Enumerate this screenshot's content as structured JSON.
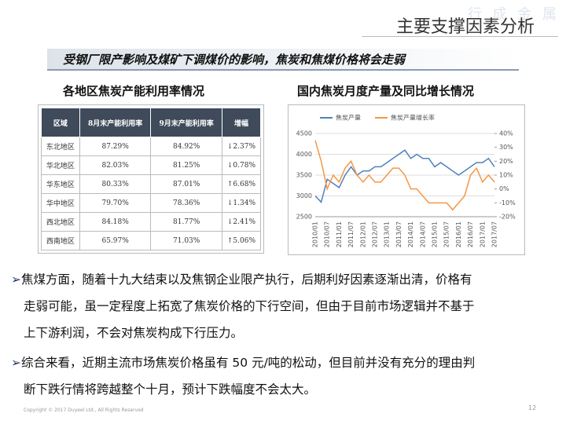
{
  "watermark": "行 成 金 属",
  "title": "主要支撑因素分析",
  "subtitle": "受钢厂限产影响及煤矿下调煤价的影响，焦炭和焦煤价格将会走弱",
  "table": {
    "heading": "各地区焦炭产能利用率情况",
    "header": [
      "区域",
      "8月末产能利用率",
      "9月末产能利用率",
      "增幅"
    ],
    "rows": [
      [
        "东北地区",
        "87.29%",
        "84.92%",
        "↓2.37%"
      ],
      [
        "华北地区",
        "82.03%",
        "81.25%",
        "↓0.78%"
      ],
      [
        "华东地区",
        "80.33%",
        "87.01%",
        "↑6.68%"
      ],
      [
        "华中地区",
        "79.70%",
        "78.36%",
        "↓1.34%"
      ],
      [
        "西北地区",
        "84.18%",
        "81.77%",
        "↓2.41%"
      ],
      [
        "西南地区",
        "65.97%",
        "71.03%",
        "↑5.06%"
      ]
    ]
  },
  "chart_data": {
    "type": "line",
    "title": "国内焦炭月度产量及同比增长情况",
    "categories": [
      "2010/01",
      null,
      "2010/07",
      null,
      "2011/01",
      null,
      "2011/07",
      null,
      "2012/01",
      null,
      "2012/07",
      null,
      "2013/01",
      null,
      "2013/07",
      null,
      "2014/01",
      null,
      "2014/07",
      null,
      "2015/01",
      null,
      "2015/07",
      null,
      "2016/01",
      null,
      "2016/07",
      null,
      "2017/01",
      null,
      "2017/07"
    ],
    "series": [
      {
        "name": "焦炭产量",
        "color": "#4f81bd",
        "values": [
          3000,
          2850,
          3400,
          3300,
          3200,
          3500,
          3700,
          3500,
          3600,
          3600,
          3700,
          3700,
          3800,
          3900,
          4000,
          4100,
          3900,
          4000,
          3900,
          3900,
          3700,
          3800,
          3700,
          3600,
          3500,
          3600,
          3700,
          3800,
          3800,
          3900,
          3700
        ]
      },
      {
        "name": "焦炭产量增长率",
        "color": "#f79646",
        "axis": "y2",
        "values": [
          35,
          20,
          0,
          10,
          5,
          15,
          20,
          10,
          5,
          10,
          5,
          5,
          10,
          15,
          15,
          10,
          0,
          0,
          -5,
          -10,
          -10,
          -10,
          -10,
          -15,
          -10,
          -5,
          10,
          15,
          5,
          10,
          5
        ]
      }
    ],
    "ylim": [
      2500,
      4500
    ],
    "yticks": [
      2500,
      3000,
      3500,
      4000,
      4500
    ],
    "y2lim": [
      -20,
      40
    ],
    "y2ticks": [
      {
        "value": -20,
        "label": "-20%"
      },
      {
        "value": -10,
        "label": "-10%"
      },
      {
        "value": 0,
        "label": "0%"
      },
      {
        "value": 10,
        "label": "10%"
      },
      {
        "value": 20,
        "label": "20%"
      },
      {
        "value": 30,
        "label": "30%"
      },
      {
        "value": 40,
        "label": "40%"
      }
    ],
    "legend": "top-left"
  },
  "bullets": [
    {
      "marker": "➢",
      "lines": [
        "焦煤方面，随着十九大结束以及焦钢企业限产执行，后期利好因素逐渐出清，价格有",
        "走弱可能，虽一定程度上拓宽了焦炭价格的下行空间，但由于目前市场逻辑并不基于",
        "上下游利润，不会对焦炭构成下行压力。"
      ]
    },
    {
      "marker": "➢",
      "lines": [
        "综合来看，近期主流市场焦炭价格虽有 50 元/吨的松动，但目前并没有充分的理由判",
        "断下跌行情将跨越整个十月，预计下跌幅度不会太大。"
      ]
    }
  ],
  "footer": {
    "copyright": "Copyright © 2017 Duyeel Ltd., All Rights Reserved",
    "page": "12"
  }
}
